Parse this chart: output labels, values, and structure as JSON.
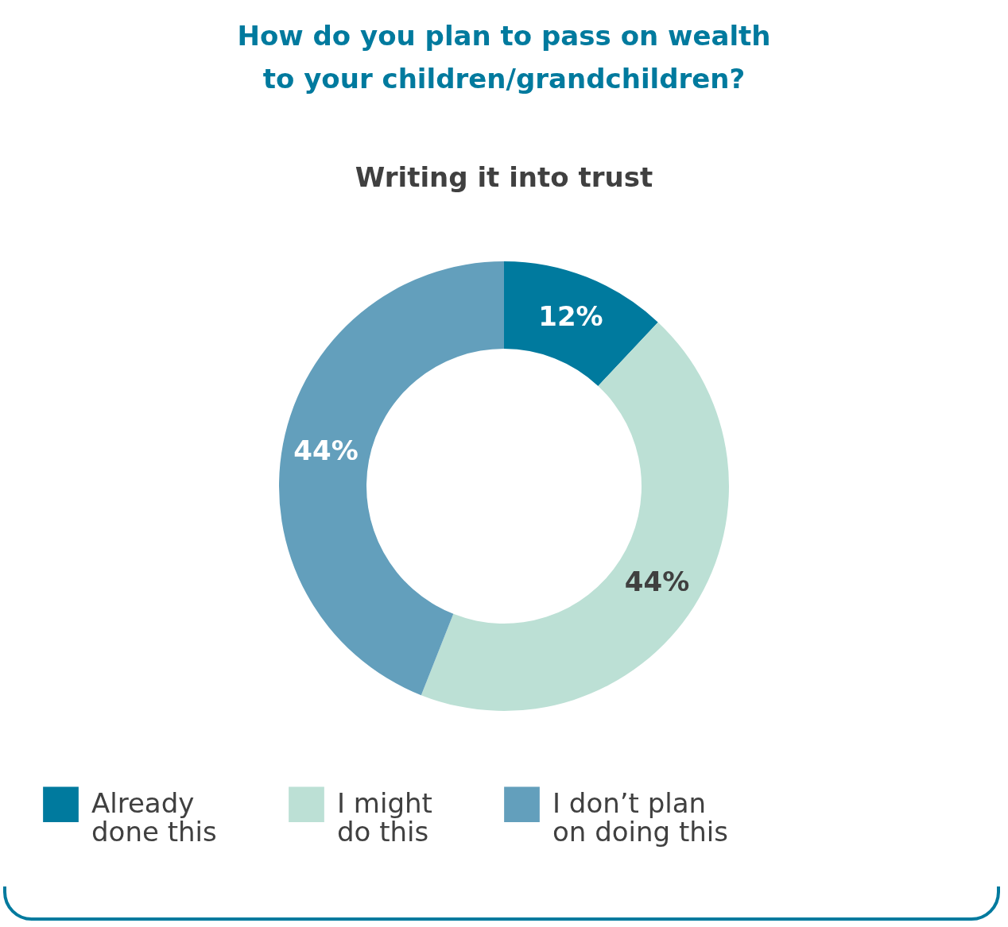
{
  "chart_data": {
    "type": "donut",
    "title": "How do you plan to pass on wealth to your children/grandchildren?",
    "subtitle": "Writing it into trust",
    "categories": [
      "Already done this",
      "I might do this",
      "I don’t plan on doing this"
    ],
    "values": [
      12,
      44,
      44
    ],
    "colors": [
      "#007a9e",
      "#bce0d5",
      "#639fbc"
    ],
    "value_labels": [
      "12%",
      "44%",
      "44%"
    ],
    "legend": "bottom"
  }
}
